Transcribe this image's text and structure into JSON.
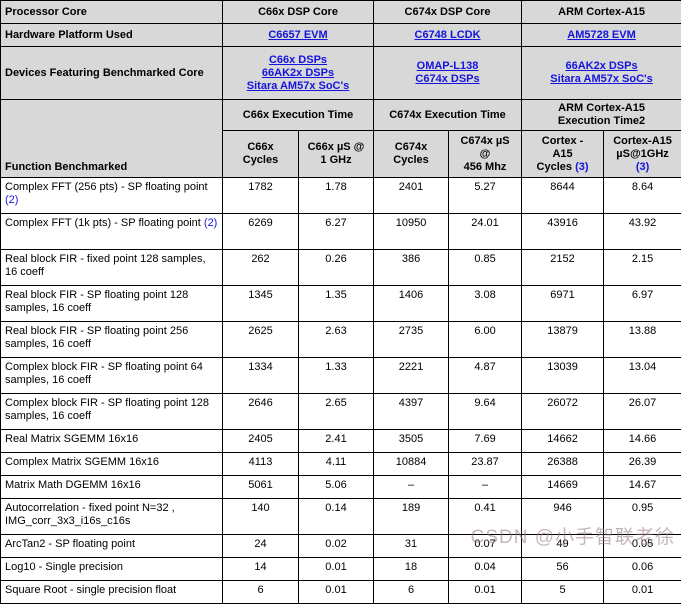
{
  "watermark": "CSDN @小手智联老徐",
  "colors": {
    "header_bg": "#d8d8d8",
    "link_blue": "#1414dd",
    "border": "#000000"
  },
  "info_rows": [
    {
      "label": "Processor Core",
      "type": "text",
      "values": [
        [
          "C66x DSP Core"
        ],
        [
          "C674x DSP Core"
        ],
        [
          "ARM Cortex-A15"
        ]
      ]
    },
    {
      "label": "Hardware Platform Used",
      "type": "link",
      "values": [
        [
          "C6657 EVM"
        ],
        [
          "C6748 LCDK"
        ],
        [
          "AM5728 EVM"
        ]
      ]
    },
    {
      "label": "Devices Featuring Benchmarked Core",
      "type": "link",
      "values": [
        [
          "C66x DSPs",
          "66AK2x DSPs",
          "Sitara AM57x SoC's"
        ],
        [
          "OMAP-L138",
          "C674x DSPs"
        ],
        [
          "66AK2x DSPs",
          "Sitara AM57x SoC's"
        ]
      ]
    }
  ],
  "exec_header": {
    "function_label": "Function Benchmarked",
    "groups": [
      [
        "C66x Execution Time"
      ],
      [
        "C674x Execution Time"
      ],
      [
        "ARM Cortex-A15",
        "Execution Time2"
      ]
    ],
    "sub_headers": [
      {
        "lines": [
          "C66x",
          "Cycles"
        ],
        "note": "",
        "note_own_line": false
      },
      {
        "lines": [
          "C66x µS @",
          "1 GHz"
        ],
        "note": "",
        "note_own_line": false
      },
      {
        "lines": [
          "C674x",
          "Cycles"
        ],
        "note": "",
        "note_own_line": false
      },
      {
        "lines": [
          "C674x µS",
          "@",
          "456 Mhz"
        ],
        "note": "",
        "note_own_line": false
      },
      {
        "lines": [
          "Cortex -",
          "A15",
          "Cycles"
        ],
        "note": "(3)",
        "note_own_line": false
      },
      {
        "lines": [
          "Cortex-A15",
          "µS@1GHz"
        ],
        "note": "(3)",
        "note_own_line": true
      }
    ]
  },
  "data_rows": [
    {
      "label": "Complex FFT (256 pts) - SP floating point",
      "note": "(2)",
      "tall": true,
      "values": [
        "1782",
        "1.78",
        "2401",
        "5.27",
        "8644",
        "8.64"
      ]
    },
    {
      "label": "Complex FFT (1k pts) - SP floating point",
      "note": "(2)",
      "tall": true,
      "values": [
        "6269",
        "6.27",
        "10950",
        "24.01",
        "43916",
        "43.92"
      ]
    },
    {
      "label": "Real block FIR - fixed point 128 samples, 16 coeff",
      "note": "",
      "tall": true,
      "values": [
        "262",
        "0.26",
        "386",
        "0.85",
        "2152",
        "2.15"
      ]
    },
    {
      "label": "Real block FIR - SP floating point 128 samples, 16 coeff",
      "note": "",
      "tall": true,
      "values": [
        "1345",
        "1.35",
        "1406",
        "3.08",
        "6971",
        "6.97"
      ]
    },
    {
      "label": "Real block FIR - SP floating point 256 samples, 16 coeff",
      "note": "",
      "tall": true,
      "values": [
        "2625",
        "2.63",
        "2735",
        "6.00",
        "13879",
        "13.88"
      ]
    },
    {
      "label": "Complex block FIR - SP floating point 64 samples, 16 coeff",
      "note": "",
      "tall": true,
      "values": [
        "1334",
        "1.33",
        "2221",
        "4.87",
        "13039",
        "13.04"
      ]
    },
    {
      "label": "Complex block FIR - SP floating point 128 samples, 16 coeff",
      "note": "",
      "tall": true,
      "values": [
        "2646",
        "2.65",
        "4397",
        "9.64",
        "26072",
        "26.07"
      ]
    },
    {
      "label": "Real Matrix SGEMM 16x16",
      "note": "",
      "tall": false,
      "values": [
        "2405",
        "2.41",
        "3505",
        "7.69",
        "14662",
        "14.66"
      ]
    },
    {
      "label": "Complex Matrix SGEMM 16x16",
      "note": "",
      "tall": false,
      "values": [
        "4113",
        "4.11",
        "10884",
        "23.87",
        "26388",
        "26.39"
      ]
    },
    {
      "label": "Matrix Math DGEMM 16x16",
      "note": "",
      "tall": false,
      "values": [
        "5061",
        "5.06",
        "–",
        "–",
        "14669",
        "14.67"
      ]
    },
    {
      "label": "Autocorrelation - fixed point N=32 , IMG_corr_3x3_i16s_c16s",
      "note": "",
      "tall": true,
      "values": [
        "140",
        "0.14",
        "189",
        "0.41",
        "946",
        "0.95"
      ]
    },
    {
      "label": "ArcTan2 - SP floating point",
      "note": "",
      "tall": false,
      "values": [
        "24",
        "0.02",
        "31",
        "0.07",
        "49",
        "0.05"
      ]
    },
    {
      "label": "Log10 - Single precision",
      "note": "",
      "tall": false,
      "values": [
        "14",
        "0.01",
        "18",
        "0.04",
        "56",
        "0.06"
      ]
    },
    {
      "label": "Square Root - single precision float",
      "note": "",
      "tall": false,
      "values": [
        "6",
        "0.01",
        "6",
        "0.01",
        "5",
        "0.01"
      ]
    }
  ]
}
